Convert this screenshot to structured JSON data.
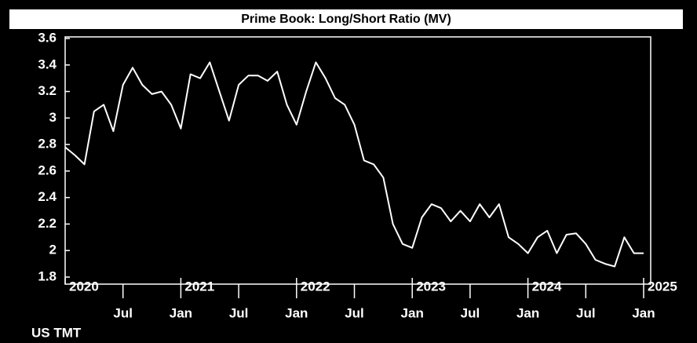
{
  "chart_data": {
    "type": "line",
    "title": "Prime Book: Long/Short Ratio (MV)",
    "footnote": "US TMT",
    "x": [
      "2020-01",
      "2020-02",
      "2020-03",
      "2020-04",
      "2020-05",
      "2020-06",
      "2020-07",
      "2020-08",
      "2020-09",
      "2020-10",
      "2020-11",
      "2020-12",
      "2021-01",
      "2021-02",
      "2021-03",
      "2021-04",
      "2021-05",
      "2021-06",
      "2021-07",
      "2021-08",
      "2021-09",
      "2021-10",
      "2021-11",
      "2021-12",
      "2022-01",
      "2022-02",
      "2022-03",
      "2022-04",
      "2022-05",
      "2022-06",
      "2022-07",
      "2022-08",
      "2022-09",
      "2022-10",
      "2022-11",
      "2022-12",
      "2023-01",
      "2023-02",
      "2023-03",
      "2023-04",
      "2023-05",
      "2023-06",
      "2023-07",
      "2023-08",
      "2023-09",
      "2023-10",
      "2023-11",
      "2023-12",
      "2024-01",
      "2024-02",
      "2024-03",
      "2024-04",
      "2024-05",
      "2024-06",
      "2024-07",
      "2024-08",
      "2024-09",
      "2024-10",
      "2024-11",
      "2024-12",
      "2025-01"
    ],
    "series": [
      {
        "name": "Long/Short Ratio",
        "color": "#ffffff",
        "values": [
          2.78,
          2.72,
          2.65,
          3.05,
          3.1,
          2.9,
          3.25,
          3.38,
          3.25,
          3.18,
          3.2,
          3.1,
          2.92,
          3.33,
          3.3,
          3.42,
          3.2,
          2.98,
          3.25,
          3.32,
          3.32,
          3.28,
          3.35,
          3.1,
          2.95,
          3.2,
          3.42,
          3.3,
          3.15,
          3.1,
          2.95,
          2.68,
          2.65,
          2.55,
          2.2,
          2.05,
          2.02,
          2.25,
          2.35,
          2.32,
          2.22,
          2.3,
          2.22,
          2.35,
          2.25,
          2.35,
          2.1,
          2.05,
          1.98,
          2.1,
          2.15,
          1.98,
          2.12,
          2.13,
          2.05,
          1.93,
          1.9,
          1.88,
          2.1,
          1.98,
          1.98
        ]
      }
    ],
    "xlim": [
      "2020-01",
      "2025-01"
    ],
    "xticks": [
      {
        "value": "2020-07",
        "label": "Jul"
      },
      {
        "value": "2021-01",
        "label": "Jan"
      },
      {
        "value": "2021-07",
        "label": "Jul"
      },
      {
        "value": "2022-01",
        "label": "Jan"
      },
      {
        "value": "2022-07",
        "label": "Jul"
      },
      {
        "value": "2023-01",
        "label": "Jan"
      },
      {
        "value": "2023-07",
        "label": "Jul"
      },
      {
        "value": "2024-01",
        "label": "Jan"
      },
      {
        "value": "2024-07",
        "label": "Jul"
      },
      {
        "value": "2025-01",
        "label": "Jan"
      }
    ],
    "year_labels": [
      {
        "value": "2020-01",
        "label": "2020"
      },
      {
        "value": "2021-01",
        "label": "2021"
      },
      {
        "value": "2022-01",
        "label": "2022"
      },
      {
        "value": "2023-01",
        "label": "2023"
      },
      {
        "value": "2024-01",
        "label": "2024"
      },
      {
        "value": "2025-01",
        "label": "2025"
      }
    ],
    "ylim": [
      1.8,
      3.6
    ],
    "yticks": [
      1.8,
      2,
      2.2,
      2.4,
      2.6,
      2.8,
      3,
      3.2,
      3.4,
      3.6
    ],
    "grid": false
  }
}
